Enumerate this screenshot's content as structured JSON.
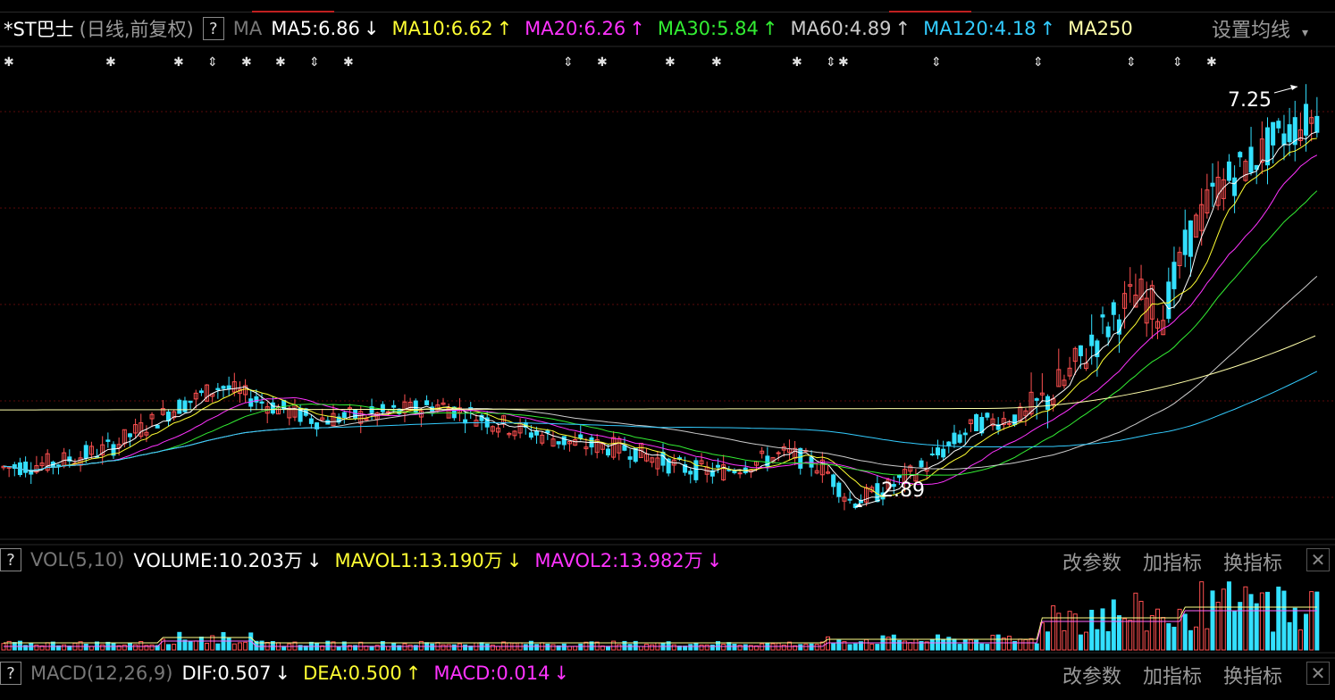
{
  "main_panel": {
    "symbol": "*ST巴士",
    "period_label": "(日线,前复权)",
    "help_label": "?",
    "indicator_name": "MA",
    "ma_items": [
      {
        "text": "MA5:6.86",
        "trend": "↓",
        "color": "#ffffff"
      },
      {
        "text": "MA10:6.62",
        "trend": "↑",
        "color": "#ffff33"
      },
      {
        "text": "MA20:6.26",
        "trend": "↑",
        "color": "#ff33ff"
      },
      {
        "text": "MA30:5.84",
        "trend": "↑",
        "color": "#33ee33"
      },
      {
        "text": "MA60:4.89",
        "trend": "↑",
        "color": "#cccccc"
      },
      {
        "text": "MA120:4.18",
        "trend": "↑",
        "color": "#33ccff"
      },
      {
        "text": "MA250",
        "trend": "",
        "color": "#ffffaa"
      }
    ],
    "settings_label": "设置均线",
    "settings_caret": "▾",
    "high_price": "7.25",
    "low_price": "2.89"
  },
  "volume_panel": {
    "help_label": "?",
    "indicator_name": "VOL(5,10)",
    "items": [
      {
        "text": "VOLUME:10.203万",
        "trend": "↓",
        "color": "#ffffff"
      },
      {
        "text": "MAVOL1:13.190万",
        "trend": "↓",
        "color": "#ffff33"
      },
      {
        "text": "MAVOL2:13.982万",
        "trend": "↓",
        "color": "#ff33ff"
      }
    ],
    "buttons": {
      "change_params": "改参数",
      "add_indicator": "加指标",
      "switch_indicator": "换指标",
      "close": "✕"
    }
  },
  "macd_panel": {
    "help_label": "?",
    "indicator_name": "MACD(12,26,9)",
    "items": [
      {
        "text": "DIF:0.507",
        "trend": "↓",
        "color": "#ffffff"
      },
      {
        "text": "DEA:0.500",
        "trend": "↑",
        "color": "#ffff33"
      },
      {
        "text": "MACD:0.014",
        "trend": "↓",
        "color": "#ff33ff"
      }
    ],
    "buttons": {
      "change_params": "改参数",
      "add_indicator": "加指标",
      "switch_indicator": "换指标",
      "close": "✕"
    }
  },
  "colors": {
    "up": "#ff5050",
    "down": "#33e0ff",
    "grid": "#5a0a0a",
    "divider": "#444444"
  }
}
